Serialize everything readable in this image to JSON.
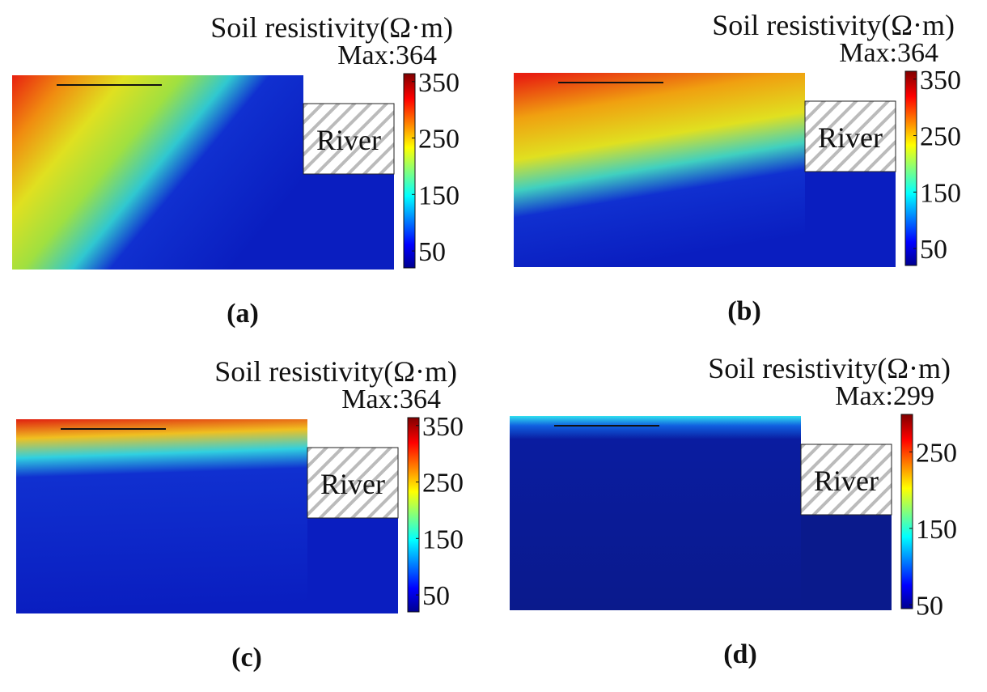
{
  "panels": [
    {
      "title": "Soil resistivity(Ω·m)",
      "max_label": "Max:364",
      "region_label": "River",
      "caption": "(a)",
      "clim": [
        20,
        364
      ],
      "ticks": [
        50,
        150,
        250,
        350
      ]
    },
    {
      "title": "Soil resistivity(Ω·m)",
      "max_label": "Max:364",
      "region_label": "River",
      "caption": "(b)",
      "clim": [
        20,
        364
      ],
      "ticks": [
        50,
        150,
        250,
        350
      ]
    },
    {
      "title": "Soil resistivity(Ω·m)",
      "max_label": "Max:364",
      "region_label": "River",
      "caption": "(c)",
      "clim": [
        20,
        364
      ],
      "ticks": [
        50,
        150,
        250,
        350
      ]
    },
    {
      "title": "Soil resistivity(Ω·m)",
      "max_label": "Max:299",
      "region_label": "River",
      "caption": "(d)",
      "clim": [
        45,
        299
      ],
      "ticks": [
        50,
        150,
        250
      ]
    }
  ]
}
